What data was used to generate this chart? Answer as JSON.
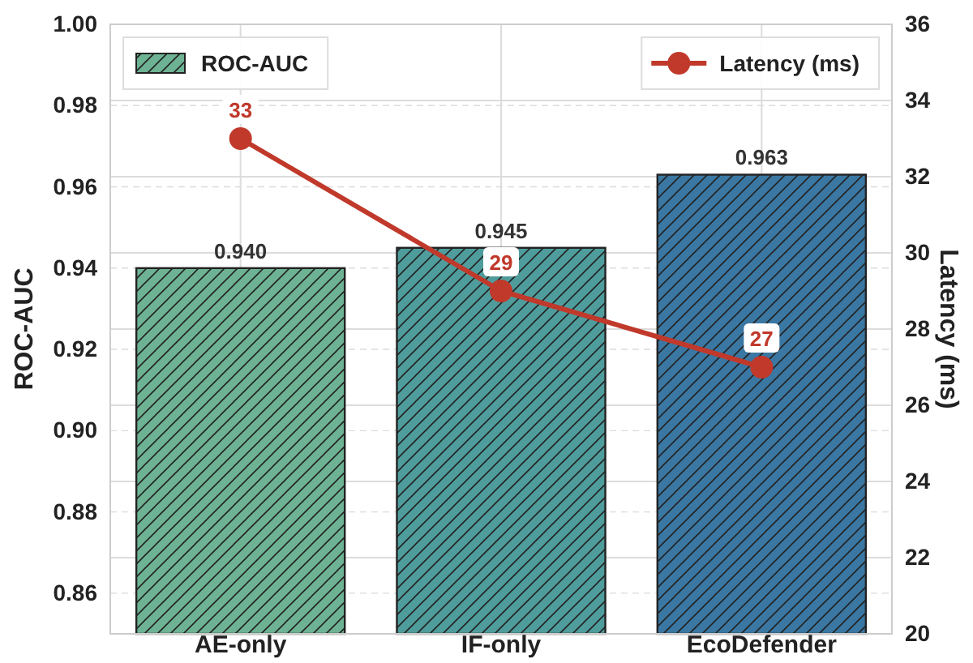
{
  "chart_data": {
    "type": "bar",
    "categories": [
      "AE-only",
      "IF-only",
      "EcoDefender"
    ],
    "ylabel": "ROC-AUC",
    "y2label": "Latency (ms)",
    "ylim": [
      0.85,
      1.0
    ],
    "yticks": [
      {
        "value": 0.86,
        "label": "0.86"
      },
      {
        "value": 0.88,
        "label": "0.88"
      },
      {
        "value": 0.9,
        "label": "0.90"
      },
      {
        "value": 0.92,
        "label": "0.92"
      },
      {
        "value": 0.94,
        "label": "0.94"
      },
      {
        "value": 0.96,
        "label": "0.96"
      },
      {
        "value": 0.98,
        "label": "0.98"
      },
      {
        "value": 1.0,
        "label": "1.00"
      }
    ],
    "y2lim": [
      20,
      36
    ],
    "y2ticks": [
      20,
      22,
      24,
      26,
      28,
      30,
      32,
      34,
      36
    ],
    "grid": true,
    "legend": "top",
    "series": [
      {
        "name": "ROC-AUC",
        "colors": [
          "#6db393",
          "#4f9c9c",
          "#3a77a2"
        ],
        "values": [
          0.94,
          0.945,
          0.963
        ],
        "value_labels": [
          "0.940",
          "0.945",
          "0.963"
        ]
      },
      {
        "name": "Latency (ms)",
        "type": "line",
        "axis": "y2",
        "color": "#c0392b",
        "marker": "circle",
        "values": [
          33,
          29,
          27
        ],
        "value_labels": [
          "33",
          "29",
          "27"
        ]
      }
    ]
  }
}
